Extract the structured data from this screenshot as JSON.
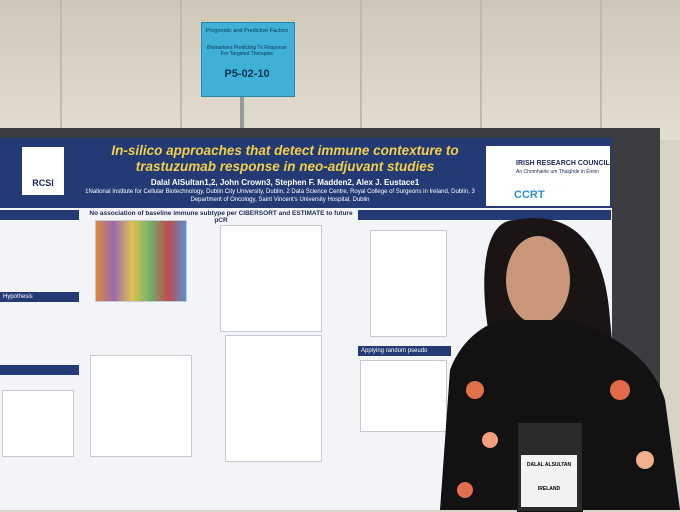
{
  "sign": {
    "category": "Prognostic and Predictive Factors",
    "topic": "Biomarkers Predicting Tx Response For Targeted Therapies",
    "code": "P5-02-10"
  },
  "poster": {
    "title": "In-silico approaches that detect immune contexture to trastuzumab response in neo-adjuvant studies",
    "authors": "Dalal AlSultan1,2, John Crown3, Stephen F. Madden2, Alex J. Eustace1",
    "affiliations": "1National Institute for Cellular Biotechnology, Dublin City University, Dublin, 2 Data Science Centre, Royal College of Surgeons in Ireland, Dublin, 3 Department of Oncology, Saint Vincent's University Hospital, Dublin",
    "logos": {
      "rcsi": "RCSI",
      "irc": "IRISH RESEARCH COUNCIL",
      "irc_irish": "An Chomhairle um Thaighde in Éirinn",
      "ccrt": "CCRT"
    },
    "middle_heading": "No association of baseline immune subtype per CIBERSORT and ESTIMATE to future pCR",
    "sections": [
      "Hypothesis",
      "Applying random pseudo"
    ]
  },
  "badge": {
    "name": "DALAL ALSULTAN",
    "country": "IRELAND"
  }
}
